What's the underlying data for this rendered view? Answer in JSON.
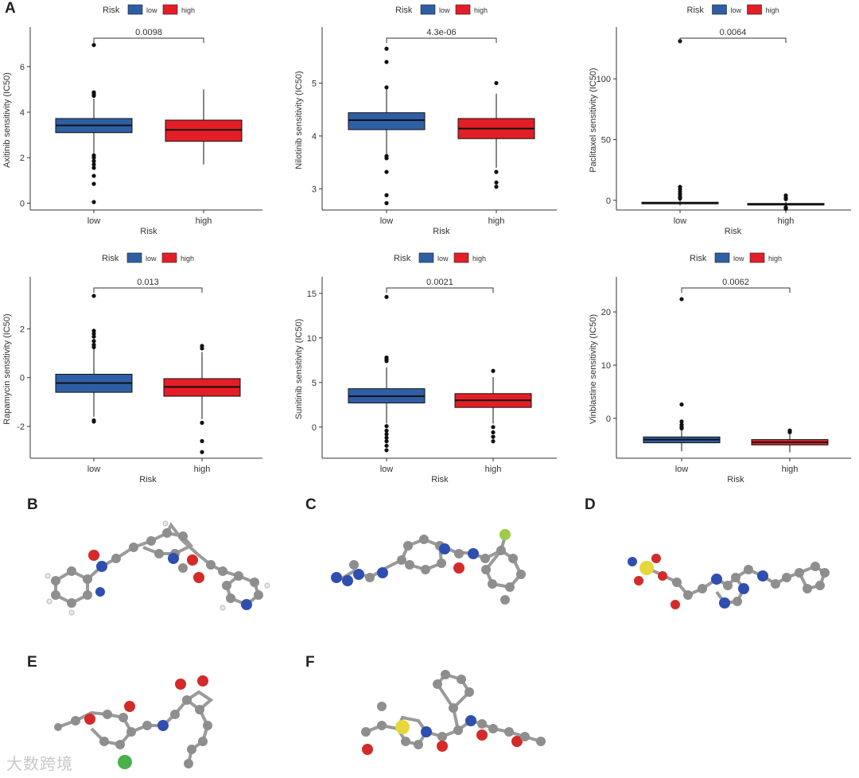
{
  "panels": {
    "A": "A",
    "B": "B",
    "C": "C",
    "D": "D",
    "E": "E",
    "F": "F"
  },
  "colors": {
    "low": "#2e5fa5",
    "high": "#e41e26",
    "axis": "#333333",
    "outlier": "#111111",
    "atom_c": "#8e8e8e",
    "atom_n": "#2f4fb0",
    "atom_o": "#d42a2a",
    "atom_s": "#e6d83a",
    "atom_cl": "#4cb04a",
    "atom_f": "#9ccc4a",
    "atom_h": "#eeeeee"
  },
  "watermark": "大数跨境",
  "chart_data": [
    {
      "type": "box",
      "title": "",
      "legend_title": "Risk",
      "legend": [
        "low",
        "high"
      ],
      "xlabel": "Risk",
      "ylabel": "Axitinib sensitivity (IC50)",
      "categories": [
        "low",
        "high"
      ],
      "ylim": [
        -0.3,
        7.6
      ],
      "yticks": [
        0,
        2,
        4,
        6
      ],
      "pvalue": "0.0098",
      "boxes": [
        {
          "q1": 3.1,
          "median": 3.42,
          "q3": 3.72,
          "wlo": 2.2,
          "whi": 4.6,
          "outliers": [
            6.95,
            4.87,
            4.8,
            4.75,
            4.72,
            2.1,
            2.0,
            1.85,
            1.7,
            1.55,
            1.2,
            0.85,
            0.05
          ]
        },
        {
          "q1": 2.72,
          "median": 3.22,
          "q3": 3.65,
          "wlo": 1.7,
          "whi": 5.0,
          "outliers": []
        }
      ]
    },
    {
      "type": "box",
      "title": "",
      "legend_title": "Risk",
      "legend": [
        "low",
        "high"
      ],
      "xlabel": "Risk",
      "ylabel": "Nilotinib sensitivity (IC50)",
      "categories": [
        "low",
        "high"
      ],
      "ylim": [
        2.6,
        6.0
      ],
      "yticks": [
        3,
        4,
        5
      ],
      "pvalue": "4.3e-06",
      "boxes": [
        {
          "q1": 4.12,
          "median": 4.3,
          "q3": 4.44,
          "wlo": 3.65,
          "whi": 4.9,
          "outliers": [
            5.65,
            5.4,
            4.92,
            3.62,
            3.58,
            3.32,
            2.88,
            2.73
          ]
        },
        {
          "q1": 3.95,
          "median": 4.14,
          "q3": 4.33,
          "wlo": 3.4,
          "whi": 4.8,
          "outliers": [
            5.0,
            3.32,
            3.12,
            3.04
          ]
        }
      ]
    },
    {
      "type": "box",
      "title": "",
      "legend_title": "Risk",
      "legend": [
        "low",
        "high"
      ],
      "xlabel": "Risk",
      "ylabel": "Paclitaxel sensitivity (IC50)",
      "categories": [
        "low",
        "high"
      ],
      "ylim": [
        -8,
        140
      ],
      "yticks": [
        0,
        50,
        100
      ],
      "pvalue": "0.0064",
      "boxes": [
        {
          "q1": -2.8,
          "median": -2.2,
          "q3": -1.6,
          "wlo": -4.5,
          "whi": 0.5,
          "outliers": [
            131,
            11,
            9,
            7,
            5,
            3,
            1.5
          ]
        },
        {
          "q1": -3.9,
          "median": -3.3,
          "q3": -2.6,
          "wlo": -5.5,
          "whi": -1.2,
          "outliers": [
            4,
            2,
            1,
            -5.8,
            -7
          ]
        }
      ]
    },
    {
      "type": "box",
      "title": "",
      "legend_title": "Risk",
      "legend": [
        "low",
        "high"
      ],
      "xlabel": "Risk",
      "ylabel": "Rapamycin sensitivity (IC50)",
      "categories": [
        "low",
        "high"
      ],
      "ylim": [
        -3.3,
        4.0
      ],
      "yticks": [
        -2,
        0,
        2
      ],
      "pvalue": "0.013",
      "boxes": [
        {
          "q1": -0.6,
          "median": -0.22,
          "q3": 0.14,
          "wlo": -1.6,
          "whi": 1.2,
          "outliers": [
            3.35,
            1.92,
            1.8,
            1.68,
            1.5,
            1.35,
            1.25,
            -1.75,
            -1.8
          ]
        },
        {
          "q1": -0.76,
          "median": -0.38,
          "q3": -0.04,
          "wlo": -1.7,
          "whi": 1.05,
          "outliers": [
            1.3,
            1.2,
            -1.85,
            -2.6,
            -3.05
          ]
        }
      ]
    },
    {
      "type": "box",
      "title": "",
      "legend_title": "Risk",
      "legend": [
        "low",
        "high"
      ],
      "xlabel": "Risk",
      "ylabel": "Sunitinib sensitivity (IC50)",
      "categories": [
        "low",
        "high"
      ],
      "ylim": [
        -3.5,
        16.5
      ],
      "yticks": [
        0,
        5,
        10,
        15
      ],
      "pvalue": "0.0021",
      "boxes": [
        {
          "q1": 2.7,
          "median": 3.45,
          "q3": 4.3,
          "wlo": 0.4,
          "whi": 6.7,
          "outliers": [
            14.6,
            7.8,
            7.6,
            7.4,
            0.1,
            -0.4,
            -0.8,
            -1.2,
            -1.6,
            -2.1,
            -2.6
          ]
        },
        {
          "q1": 2.2,
          "median": 3.0,
          "q3": 3.75,
          "wlo": 0.4,
          "whi": 5.6,
          "outliers": [
            6.3,
            0.0,
            -0.6,
            -1.1,
            -1.6
          ]
        }
      ]
    },
    {
      "type": "box",
      "title": "",
      "legend_title": "Risk",
      "legend": [
        "low",
        "high"
      ],
      "xlabel": "Risk",
      "ylabel": "Vinblastine sensitivity (IC50)",
      "categories": [
        "low",
        "high"
      ],
      "ylim": [
        -7.5,
        26
      ],
      "yticks": [
        0,
        10,
        20
      ],
      "pvalue": "0.0062",
      "boxes": [
        {
          "q1": -4.6,
          "median": -4.0,
          "q3": -3.5,
          "wlo": -6.2,
          "whi": -2.0,
          "outliers": [
            22.4,
            2.6,
            -0.6,
            -1.2,
            -1.6,
            -1.9
          ]
        },
        {
          "q1": -5.0,
          "median": -4.5,
          "q3": -4.0,
          "wlo": -6.4,
          "whi": -2.9,
          "outliers": [
            -2.3,
            -2.6
          ]
        }
      ]
    }
  ]
}
